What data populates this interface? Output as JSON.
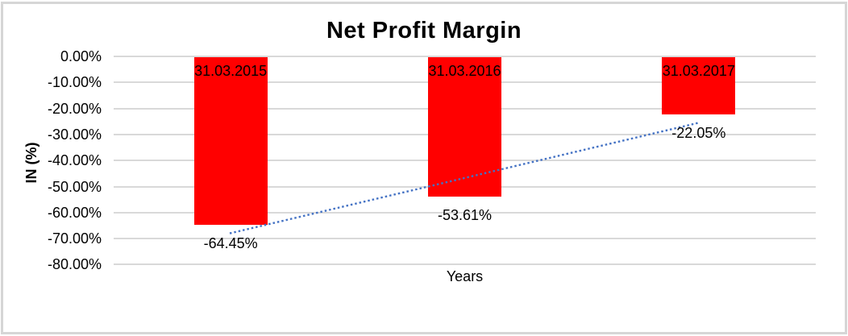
{
  "window": {
    "background": "#FFFFFF",
    "border_color": "#D6D6D6"
  },
  "chart_data": {
    "type": "bar",
    "title": "Net Profit Margin",
    "xlabel": "Years",
    "ylabel": "IN (%)",
    "categories": [
      "31.03.2015",
      "31.03.2016",
      "31.03.2017"
    ],
    "values": [
      -64.45,
      -53.61,
      -22.05
    ],
    "value_labels": [
      "-64.45%",
      "-53.61%",
      "-22.05%"
    ],
    "y_ticks": [
      "0.00%",
      "-10.00%",
      "-20.00%",
      "-30.00%",
      "-40.00%",
      "-50.00%",
      "-60.00%",
      "-70.00%",
      "-80.00%"
    ],
    "ylim": [
      0,
      -80
    ],
    "grid": true,
    "legend": "none",
    "bar_color": "#FF0000",
    "gridline_color": "#D9D9D9",
    "text_color": "#000000",
    "trendline": {
      "type": "linear",
      "style": "dotted",
      "color": "#4472C4"
    }
  }
}
